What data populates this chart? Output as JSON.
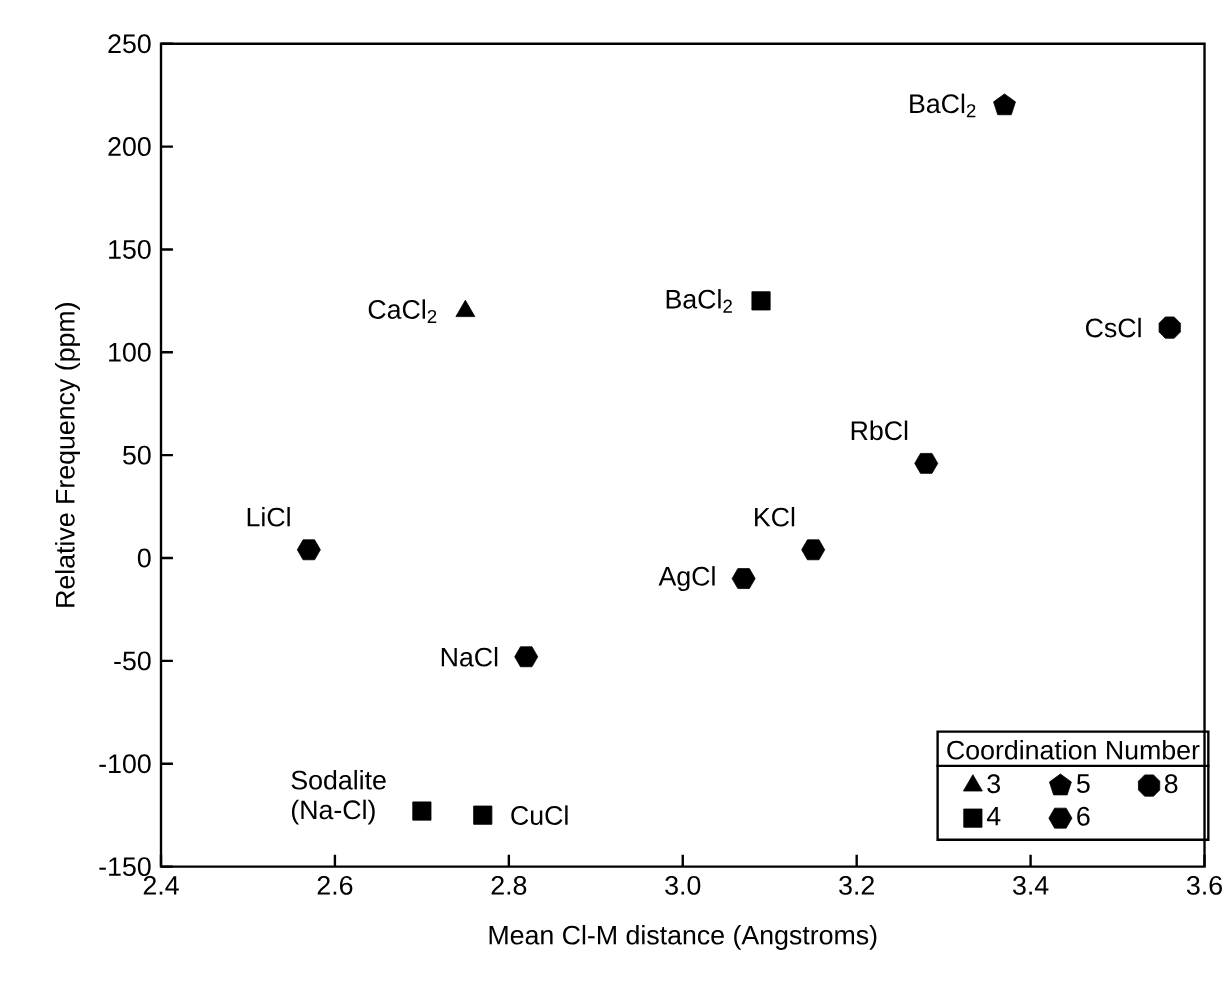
{
  "chart_data": {
    "type": "scatter",
    "xlabel": "Mean Cl-M distance (Angstroms)",
    "ylabel": "Relative Frequency (ppm)",
    "xlim": [
      2.4,
      3.6
    ],
    "ylim": [
      -150,
      250
    ],
    "xticks": [
      2.4,
      2.6,
      2.8,
      {
        "value": 3,
        "label": "3.0"
      },
      3.2,
      3.4,
      3.6
    ],
    "yticks": [
      -150,
      -100,
      -50,
      0,
      50,
      100,
      150,
      200,
      250
    ],
    "legend": "bottom right",
    "legend_title": "Coordination Number",
    "series": [
      {
        "name": "3",
        "color": "#000000",
        "marker": "triangle",
        "x": [
          2.75
        ],
        "values": [
          120
        ]
      },
      {
        "name": "4",
        "color": "#000000",
        "marker": "square",
        "x": [
          3.09,
          2.7,
          2.77
        ],
        "values": [
          125,
          -123,
          -125
        ]
      },
      {
        "name": "5",
        "color": "#000000",
        "x": [
          3.37
        ],
        "values": [
          220
        ]
      },
      {
        "name": "6",
        "color": "#000000",
        "x": [
          3.28,
          3.15,
          3.07,
          2.82,
          2.57
        ],
        "values": [
          46,
          4,
          -10,
          -48,
          4
        ]
      },
      {
        "name": "8",
        "color": "#000000",
        "x": [
          3.56
        ],
        "values": [
          112
        ]
      }
    ],
    "annotations": [
      {
        "text": "CaCl$_{2}$",
        "x": 2.75,
        "y": 120
      },
      {
        "text": "BaCl$_{2}$",
        "x": 3.09,
        "y": 125
      },
      {
        "text": "BaCl$_{2}$",
        "x": 3.37,
        "y": 220
      },
      {
        "text": "CsCl",
        "x": 3.56,
        "y": 112
      },
      {
        "text": "RbCl",
        "x": 3.28,
        "y": 46
      },
      {
        "text": "KCl",
        "x": 3.15,
        "y": 4
      },
      {
        "text": "AgCl",
        "x": 3.07,
        "y": -10
      },
      {
        "text": "NaCl",
        "x": 2.82,
        "y": -48
      },
      {
        "text": "LiCl",
        "x": 2.57,
        "y": 4
      },
      {
        "text": "Sodalite (Na-Cl)",
        "x": 2.7,
        "y": -123
      },
      {
        "text": "CuCl",
        "x": 2.77,
        "y": -125
      }
    ]
  }
}
